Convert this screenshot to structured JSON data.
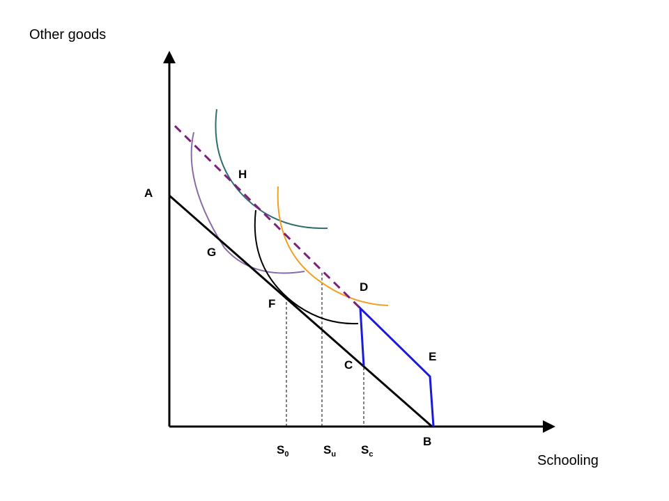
{
  "axes": {
    "y_title": "Other goods",
    "x_title": "Schooling"
  },
  "points": {
    "A": "A",
    "B": "B",
    "C": "C",
    "D": "D",
    "E": "E",
    "F": "F",
    "G": "G",
    "H": "H"
  },
  "ticks": {
    "s0": {
      "main": "S",
      "sub": "0"
    },
    "su": {
      "main": "S",
      "sub": "u"
    },
    "sc": {
      "main": "S",
      "sub": "c"
    }
  },
  "colors": {
    "budget_line": "#000000",
    "subsidy_budget": "#1a1adb",
    "dashed_line": "#7b1f7b",
    "indiff_G": "#8a6aa6",
    "indiff_F": "#000000",
    "indiff_H": "#2e6e6e",
    "indiff_D": "#f0a020"
  }
}
